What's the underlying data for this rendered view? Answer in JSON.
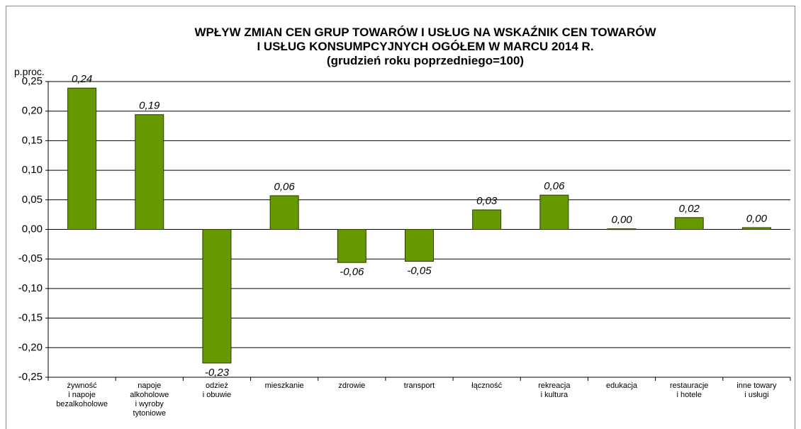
{
  "chart_data": {
    "type": "bar",
    "title": "WPŁYW ZMIAN CEN GRUP TOWARÓW I USŁUG NA WSKAŹNIK CEN TOWARÓW\nI USŁUG KONSUMPCYJNYCH OGÓŁEM W MARCU 2014 R.",
    "subtitle": "(grudzień roku poprzedniego=100)",
    "y_label": "p.proc.",
    "categories": [
      "żywność\ni napoje\nbezalkoholowe",
      "napoje\nalkoholowe\ni wyroby\ntytoniowe",
      "odzież\ni obuwie",
      "mieszkanie",
      "zdrowie",
      "transport",
      "łączność",
      "rekreacja\ni kultura",
      "edukacja",
      "restauracje\ni hotele",
      "inne towary\ni usługi"
    ],
    "values": [
      0.239,
      0.194,
      -0.226,
      0.057,
      -0.056,
      -0.054,
      0.033,
      0.058,
      0.001,
      0.02,
      0.003
    ],
    "value_labels": [
      "0,24",
      "0,19",
      "-0,23",
      "0,06",
      "-0,06",
      "-0,05",
      "0,03",
      "0,06",
      "0,00",
      "0,02",
      "0,00"
    ],
    "color": "#669900",
    "ylim": [
      -0.25,
      0.25
    ],
    "yticks": [
      {
        "value": 0.25,
        "label": "0,25"
      },
      {
        "value": 0.2,
        "label": "0,20"
      },
      {
        "value": 0.15,
        "label": "0,15"
      },
      {
        "value": 0.1,
        "label": "0,10"
      },
      {
        "value": 0.05,
        "label": "0,05"
      },
      {
        "value": 0,
        "label": "0,00"
      },
      {
        "value": -0.05,
        "label": "-0,05"
      },
      {
        "value": -0.1,
        "label": "-0,10"
      },
      {
        "value": -0.15,
        "label": "-0,15"
      },
      {
        "value": -0.2,
        "label": "-0,20"
      },
      {
        "value": -0.25,
        "label": "-0,25"
      }
    ],
    "grid": true
  }
}
